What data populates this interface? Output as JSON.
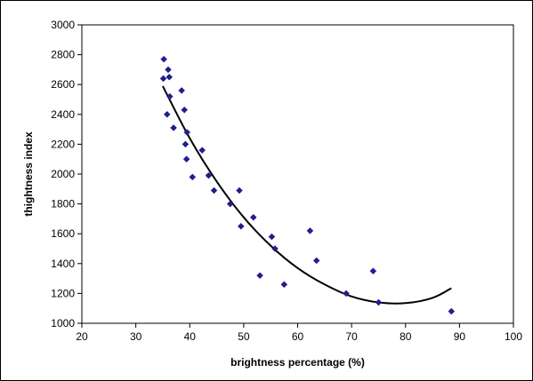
{
  "chart_data": {
    "type": "scatter",
    "title": "",
    "xlabel": "brightness percentage (%)",
    "ylabel": "thightness index",
    "xlim": [
      20,
      100
    ],
    "ylim": [
      1000,
      3000
    ],
    "x_ticks": [
      20,
      30,
      40,
      50,
      60,
      70,
      80,
      90,
      100
    ],
    "y_ticks": [
      1000,
      1200,
      1400,
      1600,
      1800,
      2000,
      2200,
      2400,
      2600,
      2800,
      3000
    ],
    "grid": false,
    "legend": "none",
    "colors": {
      "marker": "#1F1F8F",
      "trendline": "#000000",
      "axis": "#000000"
    },
    "series": [
      {
        "marker": "diamond",
        "points": [
          [
            35.2,
            2770
          ],
          [
            35.1,
            2640
          ],
          [
            36.0,
            2700
          ],
          [
            36.2,
            2650
          ],
          [
            36.3,
            2520
          ],
          [
            35.8,
            2400
          ],
          [
            37.0,
            2310
          ],
          [
            38.5,
            2560
          ],
          [
            39.0,
            2430
          ],
          [
            39.2,
            2200
          ],
          [
            39.5,
            2280
          ],
          [
            39.4,
            2100
          ],
          [
            40.5,
            1980
          ],
          [
            42.3,
            2160
          ],
          [
            43.5,
            1990
          ],
          [
            44.5,
            1890
          ],
          [
            47.5,
            1800
          ],
          [
            49.2,
            1890
          ],
          [
            49.5,
            1650
          ],
          [
            51.8,
            1710
          ],
          [
            53.0,
            1320
          ],
          [
            55.2,
            1580
          ],
          [
            55.8,
            1500
          ],
          [
            57.5,
            1260
          ],
          [
            62.3,
            1620
          ],
          [
            63.5,
            1420
          ],
          [
            69.0,
            1200
          ],
          [
            74.0,
            1350
          ],
          [
            75.0,
            1140
          ],
          [
            88.5,
            1080
          ]
        ]
      }
    ],
    "trendline": {
      "type": "polynomial",
      "order": 2,
      "x_range": [
        35,
        88.5
      ],
      "points": [
        [
          35,
          2590
        ],
        [
          40,
          2240
        ],
        [
          45,
          1950
        ],
        [
          50,
          1710
        ],
        [
          55,
          1520
        ],
        [
          60,
          1370
        ],
        [
          65,
          1260
        ],
        [
          70,
          1180
        ],
        [
          75,
          1140
        ],
        [
          80,
          1135
        ],
        [
          85,
          1170
        ],
        [
          88.5,
          1235
        ]
      ]
    }
  }
}
